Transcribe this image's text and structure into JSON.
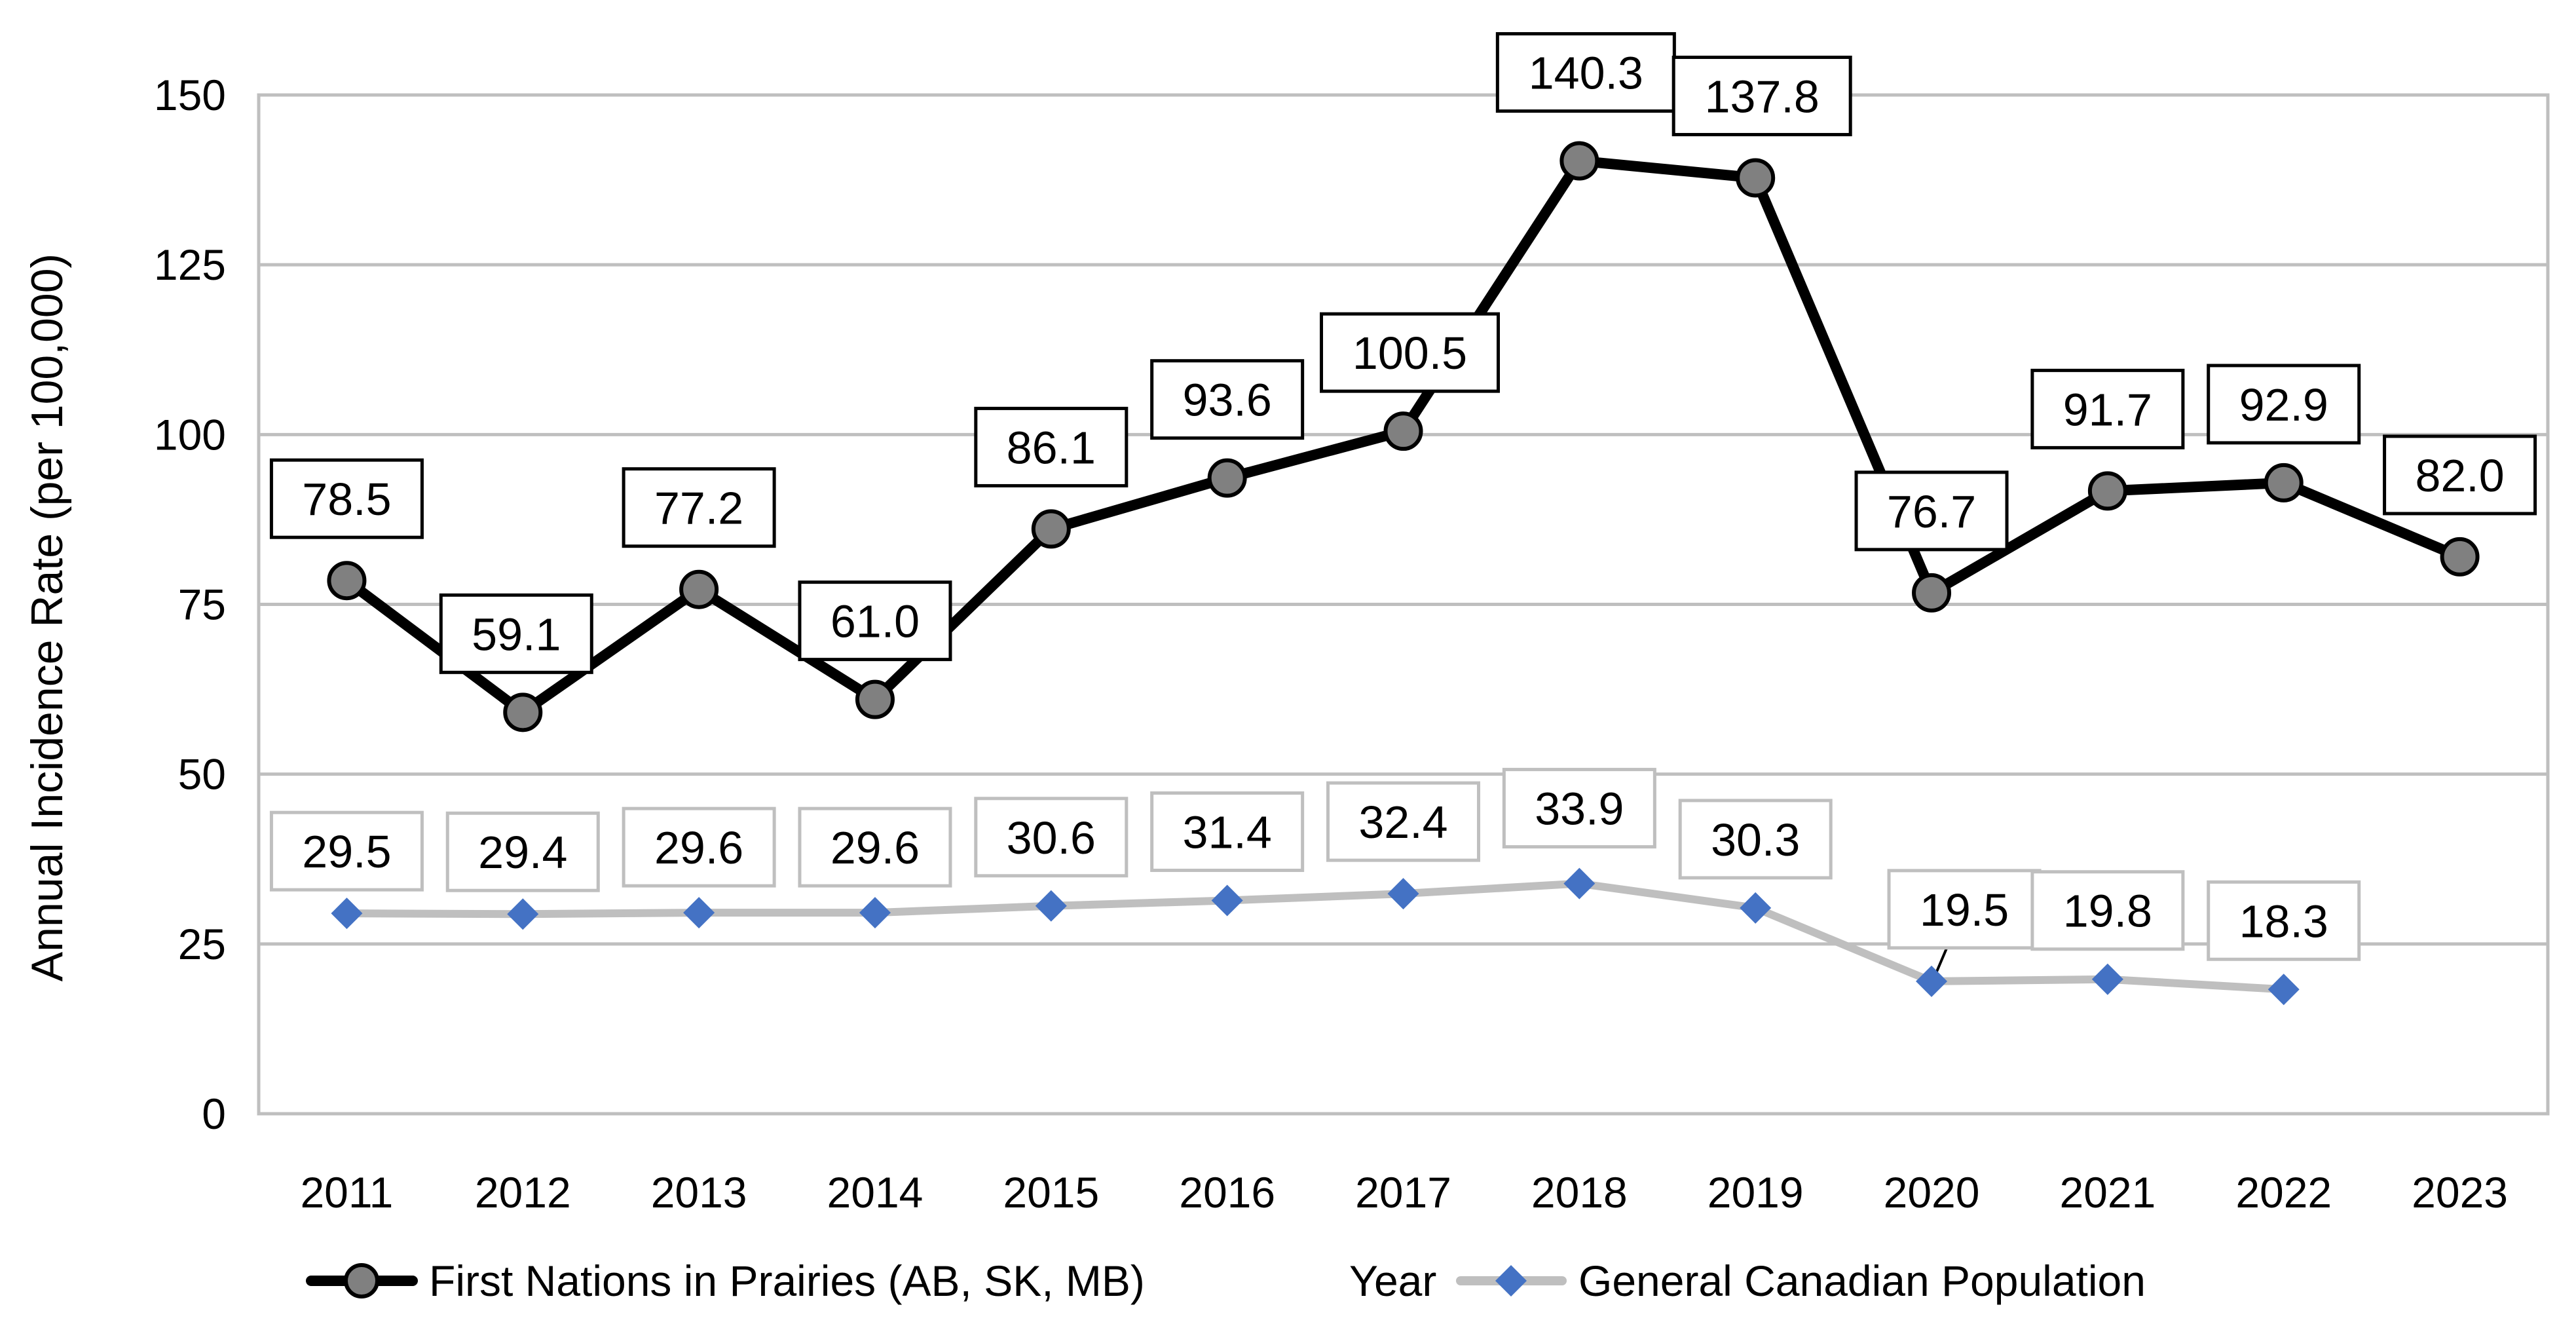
{
  "chart_data": {
    "type": "line",
    "title": "",
    "xlabel": "",
    "ylabel": "Annual Incidence Rate (per 100,000)",
    "ylim": [
      0,
      150
    ],
    "yticks": [
      "0",
      "25",
      "50",
      "75",
      "100",
      "125",
      "150"
    ],
    "grid": true,
    "legend_position": "bottom",
    "categories": [
      "2011",
      "2012",
      "2013",
      "2014",
      "2015",
      "2016",
      "2017",
      "2018",
      "2019",
      "2020",
      "2021",
      "2022",
      "2023"
    ],
    "series": [
      {
        "name": "First Nations in Prairies (AB, SK, MB)",
        "color": "#000000",
        "marker_color": "#808080",
        "values": [
          78.5,
          59.1,
          77.2,
          61.0,
          86.1,
          93.6,
          100.5,
          140.3,
          137.8,
          76.7,
          91.7,
          92.9,
          82.0
        ],
        "labels": [
          "78.5",
          "59.1",
          "77.2",
          "61.0",
          "86.1",
          "93.6",
          "100.5",
          "140.3",
          "137.8",
          "76.7",
          "91.7",
          "92.9",
          "82.0"
        ]
      },
      {
        "name": "General Canadian Population",
        "color": "#bfbfbf",
        "marker_color": "#4472c4",
        "values": [
          29.5,
          29.4,
          29.6,
          29.6,
          30.6,
          31.4,
          32.4,
          33.9,
          30.3,
          19.5,
          19.8,
          18.3,
          null
        ],
        "labels": [
          "29.5",
          "29.4",
          "29.6",
          "29.6",
          "30.6",
          "31.4",
          "32.4",
          "33.9",
          "30.3",
          "19.5",
          "19.8",
          "18.3",
          null
        ]
      }
    ],
    "legend_extra": "Year"
  }
}
